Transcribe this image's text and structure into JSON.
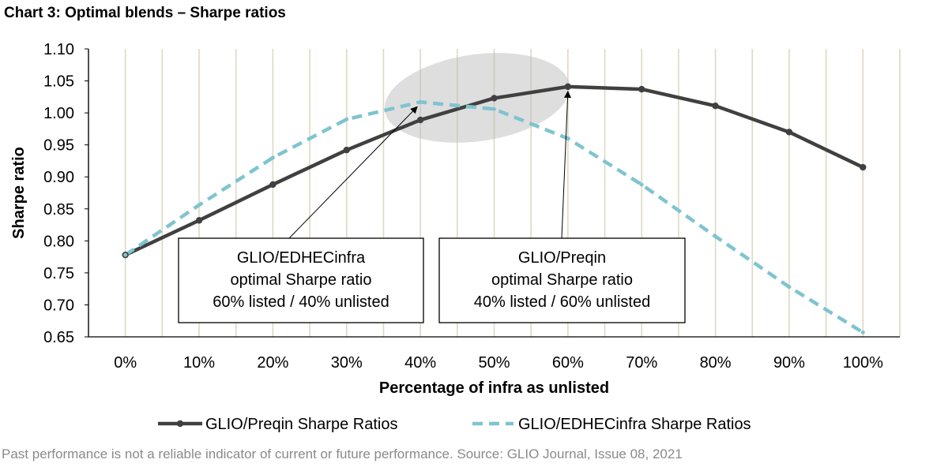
{
  "title": "Chart 3: Optimal blends – Sharpe ratios",
  "footnote": "Past performance is not a reliable indicator of current or future performance. Source: GLIO Journal, Issue 08, 2021",
  "chart_data": {
    "type": "line",
    "xlabel": "Percentage of infra as unlisted",
    "ylabel": "Sharpe ratio",
    "categories": [
      "0%",
      "10%",
      "20%",
      "30%",
      "40%",
      "50%",
      "60%",
      "70%",
      "80%",
      "90%",
      "100%"
    ],
    "ylim": [
      0.65,
      1.1
    ],
    "yticks": [
      "1.10",
      "1.05",
      "1.00",
      "0.95",
      "0.90",
      "0.85",
      "0.80",
      "0.75",
      "0.70",
      "0.65"
    ],
    "grid": "vertical",
    "legend_position": "bottom",
    "series": [
      {
        "name": "GLIO/Preqin Sharpe Ratios",
        "style": "solid-markers",
        "color": "#404040",
        "values": [
          0.778,
          0.832,
          0.888,
          0.942,
          0.989,
          1.023,
          1.041,
          1.037,
          1.011,
          0.97,
          0.915
        ]
      },
      {
        "name": "GLIO/EDHECinfra Sharpe Ratios",
        "style": "dashed",
        "color": "#7fc4cf",
        "values": [
          0.778,
          0.856,
          0.93,
          0.99,
          1.017,
          1.006,
          0.96,
          0.888,
          0.807,
          0.728,
          0.657
        ]
      }
    ],
    "annotations": [
      {
        "lines": [
          "GLIO/EDHECinfra",
          "optimal Sharpe ratio",
          "60% listed / 40% unlisted"
        ],
        "target_series": 1,
        "target_index": 4
      },
      {
        "lines": [
          "GLIO/Preqin",
          "optimal Sharpe ratio",
          "40% listed / 60% unlisted"
        ],
        "target_series": 0,
        "target_index": 6
      }
    ]
  }
}
